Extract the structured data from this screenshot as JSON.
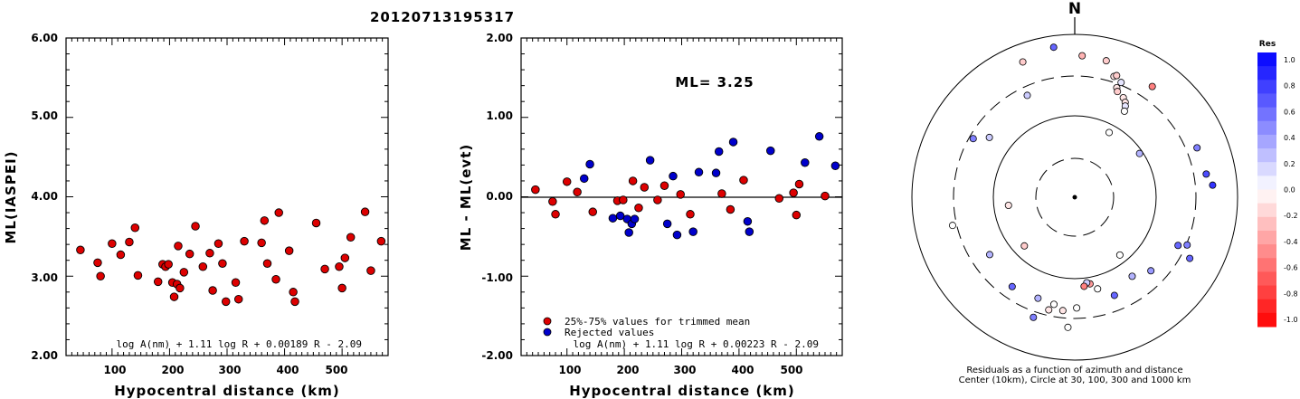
{
  "title": "20120713195317",
  "colors": {
    "trimmed": "#dd0000",
    "rejected": "#0000cc"
  },
  "chart_data": [
    {
      "type": "scatter",
      "ylabel": "ML(IASPEI)",
      "xlabel": "Hypocentral distance (km)",
      "xlim": [
        20,
        580
      ],
      "ylim": [
        2.0,
        6.0
      ],
      "xticks": [
        "100",
        "200",
        "300",
        "400",
        "500"
      ],
      "yticks": [
        "2.00",
        "3.00",
        "4.00",
        "5.00",
        "6.00"
      ],
      "formula": "log A(nm) + 1.11 log R + 0.00189 R - 2.09",
      "series": [
        {
          "color": "#dd0000",
          "points": [
            [
              45,
              3.33
            ],
            [
              75,
              3.17
            ],
            [
              80,
              3.0
            ],
            [
              100,
              3.41
            ],
            [
              115,
              3.27
            ],
            [
              130,
              3.43
            ],
            [
              140,
              3.61
            ],
            [
              145,
              3.01
            ],
            [
              180,
              2.93
            ],
            [
              188,
              3.15
            ],
            [
              193,
              3.12
            ],
            [
              198,
              3.15
            ],
            [
              205,
              2.92
            ],
            [
              208,
              2.74
            ],
            [
              213,
              2.9
            ],
            [
              215,
              3.38
            ],
            [
              218,
              2.85
            ],
            [
              225,
              3.05
            ],
            [
              235,
              3.28
            ],
            [
              245,
              3.63
            ],
            [
              258,
              3.12
            ],
            [
              270,
              3.29
            ],
            [
              275,
              2.82
            ],
            [
              285,
              3.41
            ],
            [
              292,
              3.16
            ],
            [
              298,
              2.68
            ],
            [
              315,
              2.92
            ],
            [
              320,
              2.71
            ],
            [
              330,
              3.44
            ],
            [
              360,
              3.42
            ],
            [
              365,
              3.7
            ],
            [
              370,
              3.16
            ],
            [
              385,
              2.96
            ],
            [
              390,
              3.8
            ],
            [
              408,
              3.32
            ],
            [
              415,
              2.8
            ],
            [
              418,
              2.68
            ],
            [
              455,
              3.67
            ],
            [
              470,
              3.09
            ],
            [
              495,
              3.12
            ],
            [
              500,
              2.85
            ],
            [
              505,
              3.23
            ],
            [
              515,
              3.49
            ],
            [
              540,
              3.81
            ],
            [
              550,
              3.07
            ],
            [
              568,
              3.44
            ]
          ]
        }
      ]
    },
    {
      "type": "scatter",
      "ylabel": "ML - ML(evt)",
      "xlabel": "Hypocentral distance (km)",
      "xlim": [
        20,
        580
      ],
      "ylim": [
        -2.0,
        2.0
      ],
      "xticks": [
        "100",
        "200",
        "300",
        "400",
        "500"
      ],
      "yticks": [
        "-2.00",
        "-1.00",
        "0.00",
        "1.00",
        "2.00"
      ],
      "annotation": "ML= 3.25",
      "formula": "log A(nm) + 1.11 log R + 0.00223 R - 2.09",
      "legend": [
        "25%-75% values for trimmed mean",
        "Rejected values"
      ],
      "series": [
        {
          "color": "#dd0000",
          "points": [
            [
              45,
              0.09
            ],
            [
              75,
              -0.06
            ],
            [
              80,
              -0.22
            ],
            [
              100,
              0.19
            ],
            [
              118,
              0.06
            ],
            [
              145,
              -0.19
            ],
            [
              188,
              -0.05
            ],
            [
              198,
              -0.04
            ],
            [
              215,
              0.2
            ],
            [
              225,
              -0.14
            ],
            [
              235,
              0.12
            ],
            [
              258,
              -0.04
            ],
            [
              270,
              0.14
            ],
            [
              298,
              0.03
            ],
            [
              315,
              -0.22
            ],
            [
              370,
              0.04
            ],
            [
              385,
              -0.16
            ],
            [
              408,
              0.21
            ],
            [
              470,
              -0.02
            ],
            [
              495,
              0.05
            ],
            [
              500,
              -0.23
            ],
            [
              505,
              0.16
            ],
            [
              550,
              0.01
            ]
          ]
        },
        {
          "color": "#0000cc",
          "points": [
            [
              130,
              0.23
            ],
            [
              140,
              0.41
            ],
            [
              180,
              -0.27
            ],
            [
              193,
              -0.24
            ],
            [
              205,
              -0.28
            ],
            [
              208,
              -0.45
            ],
            [
              213,
              -0.34
            ],
            [
              218,
              -0.28
            ],
            [
              245,
              0.46
            ],
            [
              275,
              -0.34
            ],
            [
              285,
              0.26
            ],
            [
              292,
              -0.48
            ],
            [
              320,
              -0.44
            ],
            [
              330,
              0.31
            ],
            [
              360,
              0.3
            ],
            [
              365,
              0.57
            ],
            [
              390,
              0.69
            ],
            [
              415,
              -0.31
            ],
            [
              418,
              -0.44
            ],
            [
              455,
              0.58
            ],
            [
              515,
              0.43
            ],
            [
              540,
              0.76
            ],
            [
              568,
              0.39
            ]
          ]
        }
      ]
    }
  ],
  "polar": {
    "north_label": "N",
    "caption1": "Residuals as a function of azimuth and distance",
    "caption2": "Center (10km), Circle at 30, 100, 300 and 1000 km",
    "colorbar_title": "Res",
    "colorbar_ticks": [
      "1.0",
      "0.8",
      "0.6",
      "0.4",
      "0.2",
      "0.0",
      "-0.2",
      "-0.4",
      "-0.6",
      "-0.8",
      "-1.0"
    ],
    "stations": [
      {
        "az": 352,
        "r": 0.93,
        "res": 0.6
      },
      {
        "az": 3,
        "r": 0.87,
        "res": -0.3
      },
      {
        "az": 13,
        "r": 0.86,
        "res": -0.2
      },
      {
        "az": 18,
        "r": 0.78,
        "res": -0.1
      },
      {
        "az": 19,
        "r": 0.79,
        "res": -0.2
      },
      {
        "az": 22,
        "r": 0.76,
        "res": 0.1
      },
      {
        "az": 21,
        "r": 0.72,
        "res": -0.1
      },
      {
        "az": 22,
        "r": 0.7,
        "res": -0.2
      },
      {
        "az": 26,
        "r": 0.68,
        "res": -0.1
      },
      {
        "az": 28,
        "r": 0.66,
        "res": -0.1
      },
      {
        "az": 29,
        "r": 0.64,
        "res": 0.1
      },
      {
        "az": 30,
        "r": 0.61,
        "res": 0.0
      },
      {
        "az": 35,
        "r": 0.83,
        "res": -0.5
      },
      {
        "az": 335,
        "r": 0.69,
        "res": 0.2
      },
      {
        "az": 339,
        "r": 0.89,
        "res": -0.2
      },
      {
        "az": 28,
        "r": 0.45,
        "res": 0.0
      },
      {
        "az": 305,
        "r": 0.64,
        "res": 0.2
      },
      {
        "az": 300,
        "r": 0.72,
        "res": 0.5
      },
      {
        "az": 56,
        "r": 0.48,
        "res": 0.3
      },
      {
        "az": 68,
        "r": 0.81,
        "res": 0.5
      },
      {
        "az": 80,
        "r": 0.82,
        "res": 0.7
      },
      {
        "az": 85,
        "r": 0.85,
        "res": 0.8
      },
      {
        "az": 263,
        "r": 0.41,
        "res": -0.1
      },
      {
        "az": 257,
        "r": 0.77,
        "res": 0.0
      },
      {
        "az": 142,
        "r": 0.45,
        "res": 0.0
      },
      {
        "az": 226,
        "r": 0.43,
        "res": -0.2
      },
      {
        "az": 215,
        "r": 0.67,
        "res": 0.6
      },
      {
        "az": 236,
        "r": 0.63,
        "res": 0.3
      },
      {
        "az": 113,
        "r": 0.75,
        "res": 0.5
      },
      {
        "az": 115,
        "r": 0.7,
        "res": 0.6
      },
      {
        "az": 118,
        "r": 0.8,
        "res": 0.6
      },
      {
        "az": 134,
        "r": 0.65,
        "res": 0.4
      },
      {
        "az": 144,
        "r": 0.6,
        "res": 0.3
      },
      {
        "az": 158,
        "r": 0.65,
        "res": 0.6
      },
      {
        "az": 166,
        "r": 0.58,
        "res": 0.0
      },
      {
        "az": 170,
        "r": 0.54,
        "res": -0.4
      },
      {
        "az": 172,
        "r": 0.53,
        "res": 0.2
      },
      {
        "az": 174,
        "r": 0.55,
        "res": -0.5
      },
      {
        "az": 179,
        "r": 0.68,
        "res": 0.0
      },
      {
        "az": 186,
        "r": 0.7,
        "res": -0.1
      },
      {
        "az": 191,
        "r": 0.67,
        "res": 0.0
      },
      {
        "az": 193,
        "r": 0.71,
        "res": -0.1
      },
      {
        "az": 200,
        "r": 0.66,
        "res": 0.3
      },
      {
        "az": 199,
        "r": 0.78,
        "res": 0.5
      },
      {
        "az": 183,
        "r": 0.8,
        "res": 0.0
      }
    ]
  }
}
